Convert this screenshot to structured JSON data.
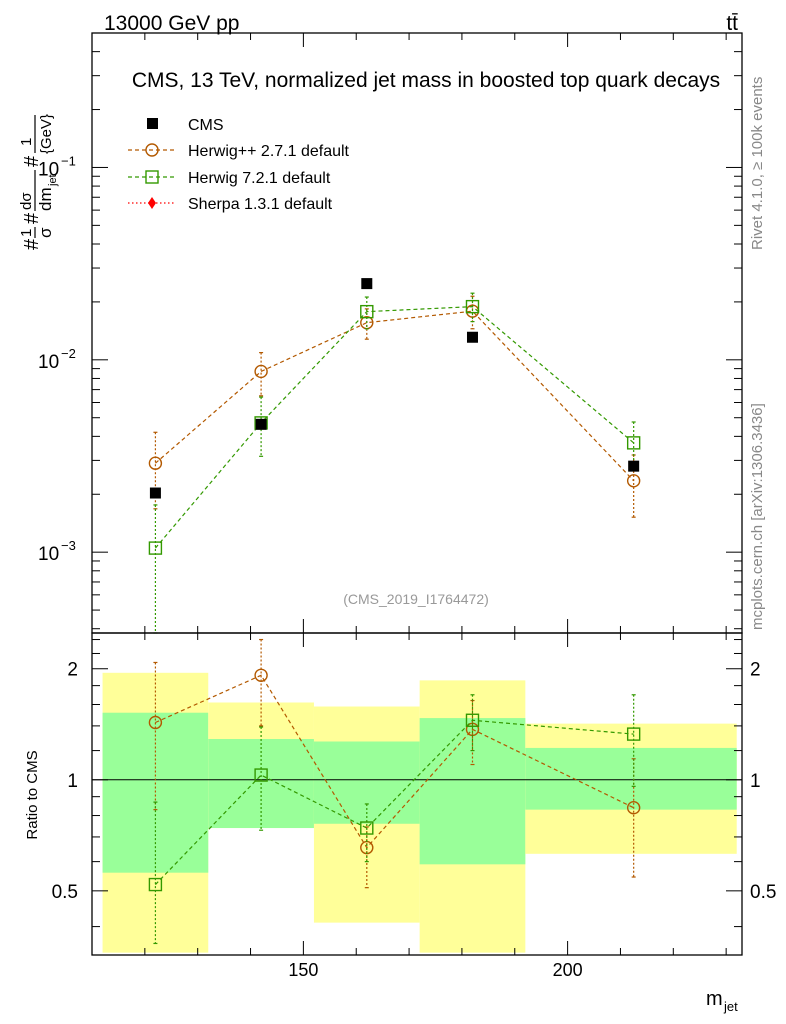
{
  "header": {
    "left": "13000 GeV pp",
    "right": "tt̄",
    "title": "CMS, 13 TeV, normalized jet mass in boosted top quark decays",
    "rivet": "Rivet 4.1.0, ≥ 100k events",
    "mcplots": "mcplots.cern.ch [arXiv:1306.3436]",
    "watermark": "(CMS_2019_I1764472)"
  },
  "colors": {
    "cms": "#000000",
    "herwigpp": "#b35900",
    "herwig7": "#339900",
    "sherpa": "#ff0000",
    "band_outer": "#ffff99",
    "band_inner": "#99ff99"
  },
  "chart_data": [
    {
      "type": "scatter",
      "title": "CMS, 13 TeV, normalized jet mass in boosted top quark decays",
      "xlabel": "m_jet",
      "ylabel": "#1/σ #dσ/dm_jet #1/{GeV}",
      "yscale": "log",
      "xlim": [
        110,
        233
      ],
      "ylim": [
        0.00038,
        0.5
      ],
      "ytick_labels": [
        "10^-3",
        "10^-2",
        "10^-1"
      ],
      "legend_position": "top-left",
      "series": [
        {
          "name": "CMS",
          "style": "data",
          "x": [
            122,
            142,
            162,
            182,
            212.5
          ],
          "y": [
            0.00203,
            0.00462,
            0.0249,
            0.0131,
            0.0028
          ]
        },
        {
          "name": "Herwig++ 2.7.1 default",
          "style": "circle",
          "x": [
            122,
            142,
            162,
            182,
            212.5
          ],
          "y": [
            0.0029,
            0.0087,
            0.0156,
            0.0179,
            0.00235
          ],
          "ylow": [
            0.00168,
            0.0065,
            0.0128,
            0.0145,
            0.00152
          ],
          "yhigh": [
            0.0042,
            0.0109,
            0.0184,
            0.0214,
            0.0032
          ]
        },
        {
          "name": "Herwig 7.2.1 default",
          "style": "square",
          "x": [
            122,
            142,
            162,
            182,
            212.5
          ],
          "y": [
            0.00105,
            0.0047,
            0.0178,
            0.0189,
            0.0037
          ],
          "ylow": [
            0.0003,
            0.00315,
            0.0145,
            0.0158,
            0.0027
          ],
          "yhigh": [
            0.00176,
            0.0064,
            0.0212,
            0.0222,
            0.00475
          ]
        },
        {
          "name": "Sherpa 1.3.1 default",
          "style": "diamond",
          "x": [],
          "y": []
        }
      ]
    },
    {
      "type": "scatter",
      "ylabel": "Ratio to CMS",
      "xlabel": "m_jet",
      "yscale": "log",
      "xlim": [
        110,
        233
      ],
      "ylim": [
        0.335,
        2.5
      ],
      "xtick_labels": [
        "150",
        "200"
      ],
      "ytick_labels": [
        "0.5",
        "1",
        "2"
      ],
      "bands": {
        "edges": [
          112,
          132,
          152,
          172,
          192,
          232
        ],
        "outer_low": [
          0.34,
          0.74,
          0.41,
          0.34,
          0.63
        ],
        "outer_high": [
          1.95,
          1.62,
          1.58,
          1.86,
          1.42
        ],
        "inner_low": [
          0.56,
          0.74,
          0.76,
          0.59,
          0.83
        ],
        "inner_high": [
          1.52,
          1.29,
          1.27,
          1.47,
          1.22
        ]
      },
      "series": [
        {
          "name": "Herwig++ 2.7.1 default",
          "style": "circle",
          "x": [
            122,
            142,
            162,
            182,
            212.5
          ],
          "y": [
            1.43,
            1.92,
            0.655,
            1.37,
            0.84
          ],
          "ylow": [
            0.83,
            1.4,
            0.51,
            1.1,
            0.545
          ],
          "yhigh": [
            2.08,
            2.4,
            0.745,
            1.64,
            1.14
          ]
        },
        {
          "name": "Herwig 7.2.1 default",
          "style": "square",
          "x": [
            122,
            142,
            162,
            182,
            212.5
          ],
          "y": [
            0.52,
            1.03,
            0.74,
            1.45,
            1.33
          ],
          "ylow": [
            0.36,
            0.73,
            0.6,
            1.2,
            0.96
          ],
          "yhigh": [
            0.87,
            1.39,
            0.86,
            1.7,
            1.7
          ]
        }
      ]
    }
  ]
}
